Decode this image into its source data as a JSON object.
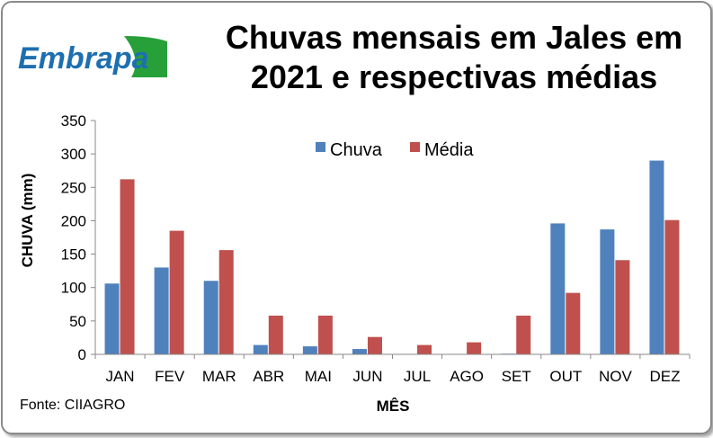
{
  "title": "Chuvas mensais em Jales em 2021 e respectivas médias",
  "logo_text": "Embrapa",
  "source_note": "Fonte: CIIAGRO",
  "colors": {
    "chuva": "#4f81bd",
    "media": "#c0504d",
    "logo_blue": "#1d6fb0",
    "logo_green": "#27a03a"
  },
  "chart_data": {
    "type": "bar",
    "categories": [
      "JAN",
      "FEV",
      "MAR",
      "ABR",
      "MAI",
      "JUN",
      "JUL",
      "AGO",
      "SET",
      "OUT",
      "NOV",
      "DEZ"
    ],
    "series": [
      {
        "name": "Chuva",
        "values": [
          106,
          130,
          110,
          14,
          12,
          8,
          0,
          0,
          1,
          196,
          187,
          290
        ]
      },
      {
        "name": "Média",
        "values": [
          262,
          185,
          156,
          58,
          58,
          26,
          14,
          18,
          58,
          92,
          141,
          201
        ]
      }
    ],
    "xlabel": "MÊS",
    "ylabel": "CHUVA (mm)",
    "ylim": [
      0,
      350
    ],
    "yticks": [
      "0",
      "50",
      "100",
      "150",
      "200",
      "250",
      "300",
      "350"
    ],
    "legend_position": "top-center",
    "grid": false
  }
}
